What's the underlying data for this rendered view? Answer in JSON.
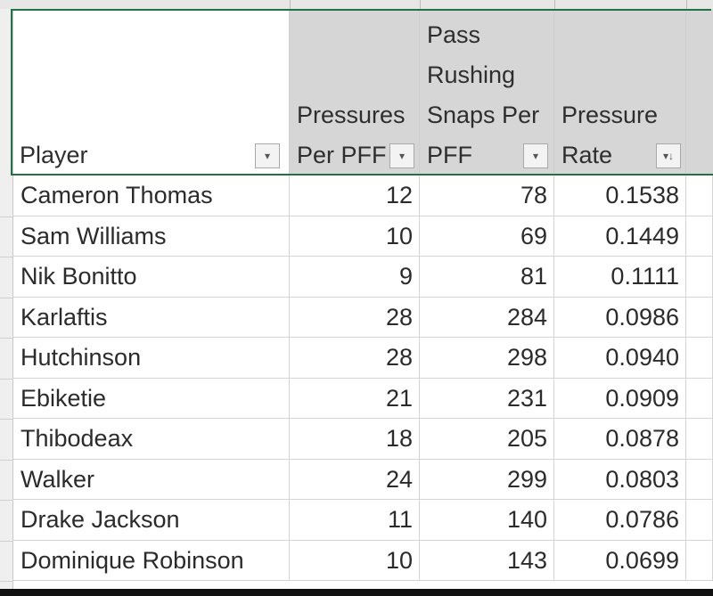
{
  "sheet": {
    "headers": [
      {
        "label": "Player"
      },
      {
        "label": "Pressures\nPer PFF"
      },
      {
        "label": "Pass\nRushing\nSnaps Per\nPFF"
      },
      {
        "label": "Pressure\nRate"
      }
    ],
    "filter_icons": [
      "dropdown-arrow-icon",
      "dropdown-arrow-icon",
      "dropdown-arrow-icon",
      "sort-descending-filter-icon"
    ],
    "rows": [
      [
        "Cameron Thomas",
        "12",
        "78",
        "0.1538"
      ],
      [
        "Sam Williams",
        "10",
        "69",
        "0.1449"
      ],
      [
        "Nik Bonitto",
        "9",
        "81",
        "0.1111"
      ],
      [
        "Karlaftis",
        "28",
        "284",
        "0.0986"
      ],
      [
        "Hutchinson",
        "28",
        "298",
        "0.0940"
      ],
      [
        "Ebiketie",
        "21",
        "231",
        "0.0909"
      ],
      [
        "Thibodeax",
        "18",
        "205",
        "0.0878"
      ],
      [
        "Walker",
        "24",
        "299",
        "0.0803"
      ],
      [
        "Drake Jackson",
        "11",
        "140",
        "0.0786"
      ],
      [
        "Dominique Robinson",
        "10",
        "143",
        "0.0699"
      ]
    ]
  },
  "colors": {
    "selection_border": "#217346",
    "header_selected_bg": "#d6d6d6",
    "gridline": "#d4d4d4"
  }
}
